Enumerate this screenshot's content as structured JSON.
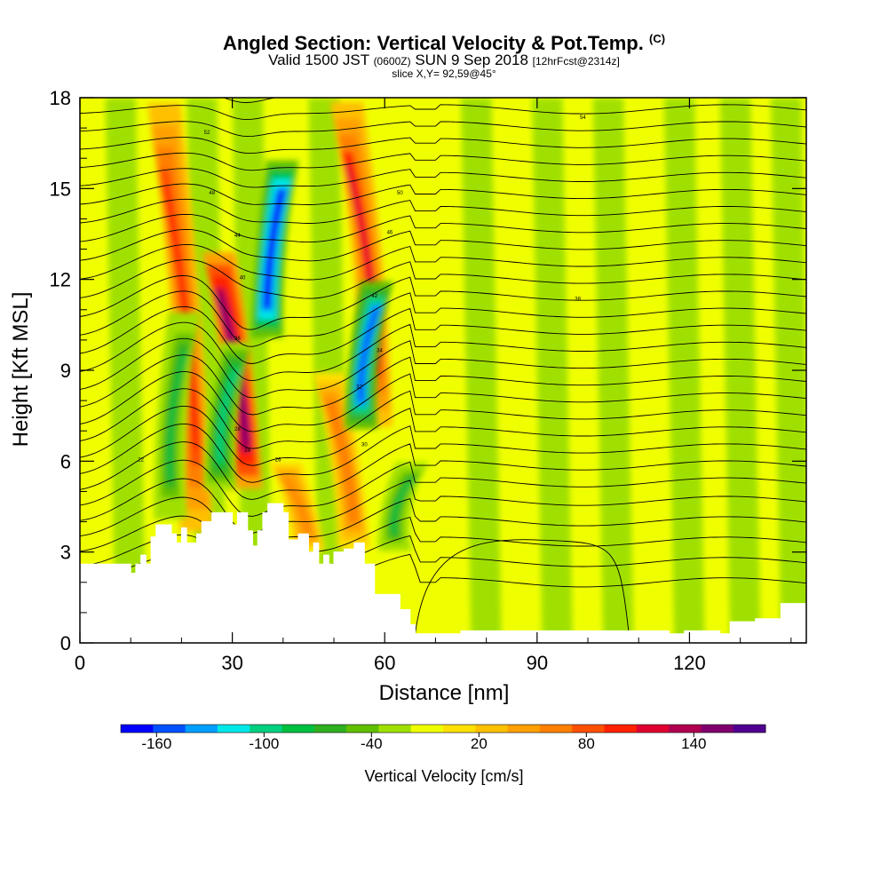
{
  "titles": {
    "main": "Angled Section: Vertical Velocity & Pot.Temp.",
    "main_unit": "(C)",
    "valid_prefix": "Valid 1500 JST",
    "valid_utc": "(0600Z)",
    "valid_date": "SUN 9 Sep 2018",
    "forecast": "[12hrFcst@2314z]",
    "slice": "slice X,Y= 92,59@45°"
  },
  "chart_data": {
    "type": "heatmap",
    "title": "Angled Section: Vertical Velocity & Pot.Temp.",
    "xlabel": "Distance [nm]",
    "ylabel": "Height [Kft MSL]",
    "xlim": [
      0,
      143
    ],
    "ylim": [
      0,
      18
    ],
    "x_ticks": [
      "0",
      "30",
      "60",
      "90",
      "120"
    ],
    "x_tick_values": [
      0,
      30,
      60,
      90,
      120
    ],
    "y_ticks": [
      "0",
      "3",
      "6",
      "9",
      "12",
      "15",
      "18"
    ],
    "y_tick_values": [
      0,
      3,
      6,
      9,
      12,
      15,
      18
    ],
    "colorbar": {
      "title": "Vertical Velocity [cm/s]",
      "labels": [
        "-160",
        "-100",
        "-40",
        "20",
        "80",
        "140"
      ],
      "label_values": [
        -160,
        -100,
        -40,
        20,
        80,
        140
      ],
      "min": -180,
      "max": 180,
      "colors": [
        "#0000ff",
        "#0050ff",
        "#00a0ff",
        "#00e8e8",
        "#00d080",
        "#00c040",
        "#30b020",
        "#60c000",
        "#a0e000",
        "#f0ff00",
        "#ffe000",
        "#ffc000",
        "#ffa000",
        "#ff8000",
        "#ff5000",
        "#ff2000",
        "#e00030",
        "#b00050",
        "#800070",
        "#500090"
      ]
    },
    "updraft_cores": [
      {
        "x": 22,
        "z_range": [
          3.5,
          18
        ],
        "max_w": 90
      },
      {
        "x": 32,
        "z_range": [
          5,
          13
        ],
        "max_w": 160
      },
      {
        "x": 44,
        "z_range": [
          3,
          6
        ],
        "max_w": 60
      },
      {
        "x": 53,
        "z_range": [
          3,
          9
        ],
        "max_w": 70
      },
      {
        "x": 58,
        "z_range": [
          7,
          18
        ],
        "max_w": 110
      }
    ],
    "downdraft_cores": [
      {
        "x": 17,
        "z_range": [
          4,
          11
        ],
        "max_w": -80
      },
      {
        "x": 27,
        "z_range": [
          5,
          10
        ],
        "max_w": -100
      },
      {
        "x": 37,
        "z_range": [
          10,
          16
        ],
        "max_w": -170
      },
      {
        "x": 55,
        "z_range": [
          7,
          12
        ],
        "max_w": -150
      },
      {
        "x": 61,
        "z_range": [
          3,
          6
        ],
        "max_w": -80
      }
    ],
    "terrain": [
      [
        0,
        2.6
      ],
      [
        9,
        2.6
      ],
      [
        10,
        2.3
      ],
      [
        11,
        2.6
      ],
      [
        12,
        2.9
      ],
      [
        13,
        2.6
      ],
      [
        14,
        3.5
      ],
      [
        15,
        3.9
      ],
      [
        18,
        3.6
      ],
      [
        19,
        3.3
      ],
      [
        20,
        3.8
      ],
      [
        21,
        3.3
      ],
      [
        23,
        3.6
      ],
      [
        24,
        4.0
      ],
      [
        26,
        4.3
      ],
      [
        30,
        3.9
      ],
      [
        31,
        4.3
      ],
      [
        33,
        3.7
      ],
      [
        34,
        3.2
      ],
      [
        35,
        3.7
      ],
      [
        36,
        4.3
      ],
      [
        37,
        4.6
      ],
      [
        40,
        4.3
      ],
      [
        41,
        3.4
      ],
      [
        43,
        3.6
      ],
      [
        45,
        3.0
      ],
      [
        46,
        3.3
      ],
      [
        47,
        2.6
      ],
      [
        48,
        2.9
      ],
      [
        49,
        2.6
      ],
      [
        50,
        3.0
      ],
      [
        52,
        3.1
      ],
      [
        54,
        3.3
      ],
      [
        56,
        2.6
      ],
      [
        58,
        1.6
      ],
      [
        63,
        1.1
      ],
      [
        65,
        0.6
      ],
      [
        66,
        0.3
      ],
      [
        72,
        0.3
      ],
      [
        75,
        0.4
      ],
      [
        113,
        0.4
      ],
      [
        116,
        0.3
      ],
      [
        119,
        0.4
      ],
      [
        124,
        0.4
      ],
      [
        126,
        0.3
      ],
      [
        128,
        0.7
      ],
      [
        133,
        0.8
      ],
      [
        138,
        1.3
      ],
      [
        143,
        1.3
      ]
    ],
    "isentrope_labels": [
      "22",
      "24",
      "26",
      "28",
      "30",
      "32",
      "34",
      "36",
      "38",
      "40",
      "42",
      "44",
      "46",
      "48",
      "50",
      "52",
      "54"
    ]
  }
}
